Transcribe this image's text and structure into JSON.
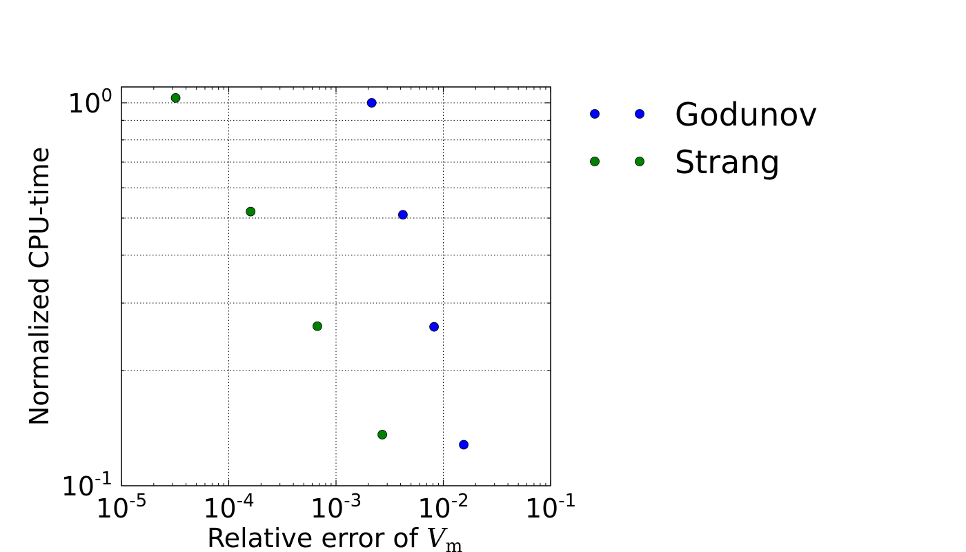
{
  "chart_data": {
    "type": "scatter",
    "xlabel": {
      "text": "Relative error of ",
      "math_symbol": "V",
      "math_subscript": "m"
    },
    "ylabel": "Normalized CPU-time",
    "xscale": "log",
    "yscale": "log",
    "xlim": [
      1e-05,
      0.1
    ],
    "ylim": [
      0.1,
      1.1
    ],
    "grid": true,
    "legend_position": "outside-right",
    "x_ticks": [
      {
        "value": 1e-05,
        "base": "10",
        "exp": "-5"
      },
      {
        "value": 0.0001,
        "base": "10",
        "exp": "-4"
      },
      {
        "value": 0.001,
        "base": "10",
        "exp": "-3"
      },
      {
        "value": 0.01,
        "base": "10",
        "exp": "-2"
      },
      {
        "value": 0.1,
        "base": "10",
        "exp": "-1"
      }
    ],
    "y_ticks": [
      {
        "value": 1,
        "base": "10",
        "exp": "0"
      },
      {
        "value": 0.1,
        "base": "10",
        "exp": "-1"
      }
    ],
    "series": [
      {
        "name": "Godunov",
        "color": "#0000ff",
        "points": [
          {
            "x": 0.00215,
            "y": 1.0
          },
          {
            "x": 0.0042,
            "y": 0.51
          },
          {
            "x": 0.0082,
            "y": 0.26
          },
          {
            "x": 0.0155,
            "y": 0.128
          }
        ]
      },
      {
        "name": "Strang",
        "color": "#008000",
        "points": [
          {
            "x": 3.2e-05,
            "y": 1.03
          },
          {
            "x": 0.00016,
            "y": 0.52
          },
          {
            "x": 0.00067,
            "y": 0.261
          },
          {
            "x": 0.0027,
            "y": 0.136
          }
        ]
      }
    ]
  }
}
